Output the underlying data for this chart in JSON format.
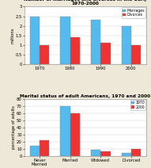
{
  "chart1": {
    "title": "Number of marriages and divorces in the USA,\n1970-2000",
    "years": [
      "1970",
      "1980",
      "1990",
      "2000"
    ],
    "marriages": [
      2.5,
      2.5,
      2.3,
      2.0
    ],
    "divorces": [
      1.0,
      1.4,
      1.1,
      1.0
    ],
    "ylabel": "millions",
    "ylim": [
      0,
      3.0
    ],
    "yticks": [
      0,
      0.5,
      1.0,
      1.5,
      2.0,
      2.5,
      3.0
    ],
    "ytick_labels": [
      "0",
      "0.5",
      "1",
      "1.5",
      "2",
      "2.5",
      "3"
    ],
    "bar_color_marriages": "#55bbee",
    "bar_color_divorces": "#ee3333",
    "legend_labels": [
      "Marriages",
      "Divorces"
    ]
  },
  "chart2": {
    "title": "Marital status of adult Americans, 1970 and 2000",
    "categories": [
      "Never\nMarried",
      "Married",
      "Widowed",
      "Divorced"
    ],
    "values_1970": [
      15,
      70,
      9,
      5
    ],
    "values_2000": [
      22,
      60,
      7,
      10
    ],
    "ylabel": "percentage of adults",
    "ylim": [
      0,
      80
    ],
    "yticks": [
      0,
      10,
      20,
      30,
      40,
      50,
      60,
      70,
      80
    ],
    "bar_color_1970": "#55bbee",
    "bar_color_2000": "#ee3333",
    "legend_labels": [
      "1970",
      "2000"
    ]
  },
  "bg_color": "#ede8d8",
  "plot_bg": "#ffffff",
  "font_size": 3.8,
  "title_font_size": 4.2
}
